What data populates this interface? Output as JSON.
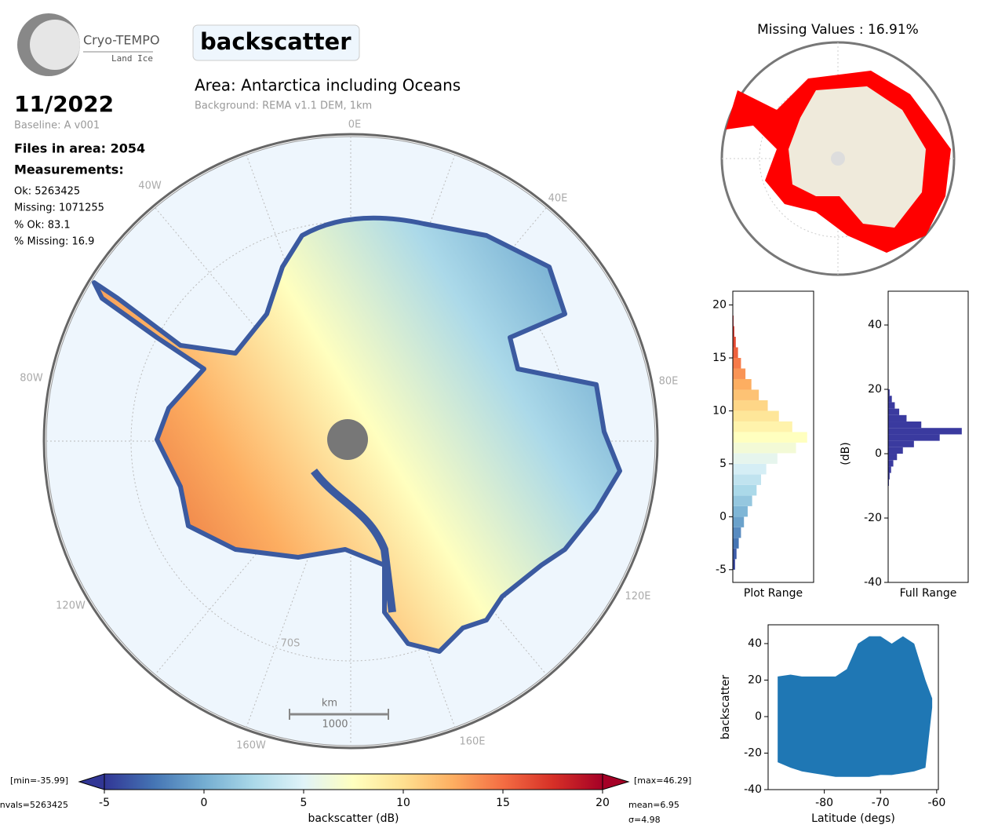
{
  "header": {
    "logo_title": "Cryo-TEMPO",
    "logo_subtitle": "Land Ice",
    "parameter": "backscatter",
    "area": "Area: Antarctica including Oceans",
    "background": "Background: REMA v1.1 DEM, 1km",
    "date": "11/2022",
    "baseline": "Baseline: A v001"
  },
  "stats": {
    "files": "Files in area: 2054",
    "measurements": "Measurements:",
    "lines": [
      "Ok: 5263425",
      "Missing: 1071255",
      "% Ok: 83.1",
      "% Missing: 16.9"
    ]
  },
  "map": {
    "lon_labels": [
      "0E",
      "40E",
      "80E",
      "120E",
      "160E",
      "160W",
      "120W",
      "80W",
      "40W"
    ],
    "lat_label": "70S",
    "scale_unit": "km",
    "scale_value": "1000"
  },
  "chart_data": [
    {
      "type": "map",
      "title": "Missing Values : 16.91%"
    },
    {
      "type": "histogram",
      "orientation": "horizontal",
      "xlabel": "Plot Range",
      "colormap": "RdYlBu_r",
      "ylim": [
        -6.2,
        21.3
      ],
      "yticks": [
        -5,
        0,
        5,
        10,
        15,
        20
      ],
      "bins": [
        -5,
        -4,
        -3,
        -2,
        -1,
        0,
        1,
        2,
        3,
        4,
        5,
        6,
        7,
        8,
        9,
        10,
        11,
        12,
        13,
        14,
        15,
        16,
        17,
        18,
        19
      ],
      "values": [
        3,
        5,
        8,
        11,
        15,
        20,
        26,
        32,
        38,
        45,
        60,
        85,
        100,
        80,
        62,
        47,
        35,
        25,
        17,
        11,
        7,
        4,
        2,
        1
      ]
    },
    {
      "type": "histogram",
      "orientation": "horizontal",
      "xlabel": "Full Range",
      "ylabel": "(dB)",
      "color": "#3a3a9f",
      "ylim": [
        -40,
        50.5
      ],
      "yticks": [
        -40,
        -20,
        0,
        20,
        40
      ],
      "bins": [
        -10,
        -8,
        -6,
        -4,
        -2,
        0,
        2,
        4,
        6,
        8,
        10,
        12,
        14,
        16,
        18,
        20
      ],
      "values": [
        1,
        2,
        4,
        7,
        12,
        20,
        35,
        70,
        100,
        45,
        25,
        15,
        9,
        5,
        2
      ]
    },
    {
      "type": "scatter",
      "xlabel": "Latitude (degs)",
      "ylabel": "backscatter",
      "color": "#1f77b4",
      "xlim": [
        -90,
        -59.7
      ],
      "xticks": [
        -80,
        -70,
        -60
      ],
      "ylim": [
        -40,
        50.3
      ],
      "yticks": [
        -40,
        -20,
        0,
        20,
        40
      ],
      "x": [
        -88.3,
        -86,
        -84,
        -82,
        -80,
        -78,
        -76,
        -74,
        -72,
        -70,
        -68,
        -66,
        -64,
        -62,
        -60.8
      ],
      "upper": [
        22,
        23,
        22,
        22,
        22,
        22,
        26,
        40,
        44,
        44,
        40,
        44,
        40,
        20,
        10
      ],
      "lower": [
        -25,
        -28,
        -30,
        -31,
        -32,
        -33,
        -33,
        -33,
        -33,
        -32,
        -32,
        -31,
        -30,
        -28,
        5
      ]
    },
    {
      "type": "colorbar",
      "xlabel": "backscatter (dB)",
      "xlim": [
        -5,
        20
      ],
      "xticks": [
        -5,
        0,
        5,
        10,
        15,
        20
      ],
      "colors": [
        "#313695",
        "#4575b4",
        "#74add1",
        "#abd9e9",
        "#e0f3f8",
        "#ffffbf",
        "#fee090",
        "#fdae61",
        "#f46d43",
        "#d73027",
        "#a50026"
      ],
      "min_label": "[min=-35.99]",
      "max_label": "[max=46.29]",
      "count_label": "nvals=5263425",
      "mean_label": "mean=6.95",
      "std_label": "σ=4.98"
    }
  ]
}
